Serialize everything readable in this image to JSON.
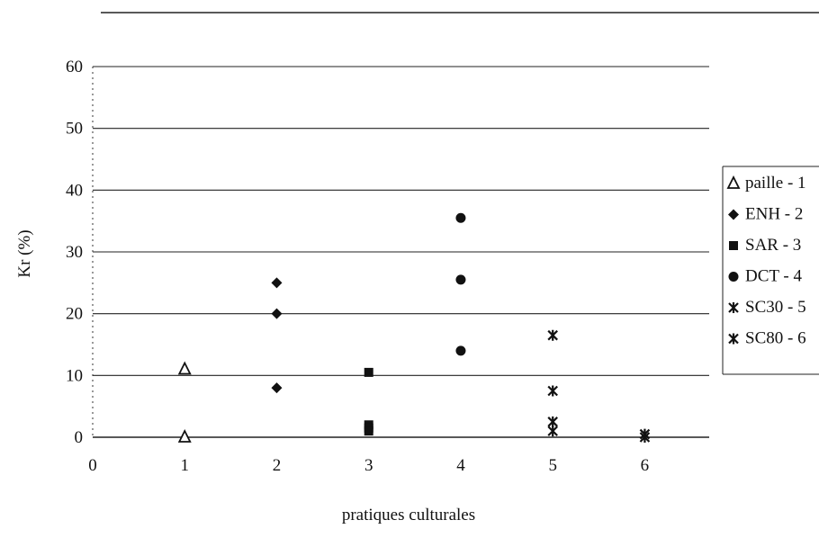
{
  "chart_data": {
    "type": "scatter",
    "title": "",
    "xlabel": "pratiques culturales",
    "ylabel": "Kr (%)",
    "xlim": [
      0,
      6.7
    ],
    "ylim": [
      0,
      60
    ],
    "x_ticks": [
      "0",
      "1",
      "2",
      "3",
      "4",
      "5",
      "6"
    ],
    "y_ticks": [
      "0",
      "10",
      "20",
      "30",
      "40",
      "50",
      "60"
    ],
    "grid": "horizontal",
    "legend_position": "right",
    "series": [
      {
        "name": "paille - 1",
        "marker": "triangle-open",
        "x": [
          1,
          1
        ],
        "y": [
          11,
          0
        ]
      },
      {
        "name": "ENH - 2",
        "marker": "diamond",
        "x": [
          2,
          2,
          2
        ],
        "y": [
          25,
          20,
          8
        ]
      },
      {
        "name": "SAR - 3",
        "marker": "square",
        "x": [
          3,
          3,
          3,
          3
        ],
        "y": [
          10.5,
          2,
          1.5,
          1
        ]
      },
      {
        "name": "DCT - 4",
        "marker": "circle",
        "x": [
          4,
          4,
          4
        ],
        "y": [
          35.5,
          25.5,
          14
        ]
      },
      {
        "name": "SC30 - 5",
        "marker": "x-star",
        "x": [
          5,
          5,
          5,
          5
        ],
        "y": [
          16.5,
          7.5,
          2.5,
          1
        ]
      },
      {
        "name": "SC80 - 6",
        "marker": "x-star",
        "x": [
          6,
          6
        ],
        "y": [
          0.5,
          0
        ]
      }
    ]
  }
}
